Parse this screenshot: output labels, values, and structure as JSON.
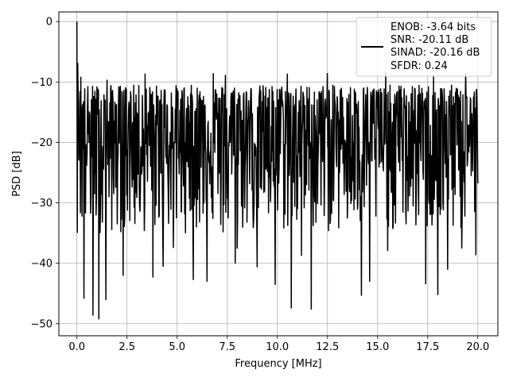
{
  "chart_data": {
    "type": "line",
    "title": "",
    "xlabel": "Frequency [MHz]",
    "ylabel": "PSD [dB]",
    "xlim": [
      -0.9,
      21.0
    ],
    "ylim": [
      -52.0,
      1.6
    ],
    "xticks": [
      0.0,
      2.5,
      5.0,
      7.5,
      10.0,
      12.5,
      15.0,
      17.5,
      20.0
    ],
    "xtick_labels": [
      "0.0",
      "2.5",
      "5.0",
      "7.5",
      "10.0",
      "12.5",
      "15.0",
      "17.5",
      "20.0"
    ],
    "yticks": [
      0,
      -10,
      -20,
      -30,
      -40,
      -50
    ],
    "ytick_labels": [
      "0",
      "−10",
      "−20",
      "−30",
      "−40",
      "−50"
    ],
    "grid": true,
    "legend_position": "top-right",
    "legend_lines": [
      "ENOB: -3.64 bits",
      "SNR: -20.11 dB",
      "SINAD: -20.16 dB",
      "SFDR: 0.24"
    ],
    "series": [
      {
        "color": "#000000",
        "x_range": [
          0.0,
          20.0
        ],
        "points": 1024,
        "noise_floor_db": -20,
        "noise_typical_max_db": -10,
        "noise_typical_min_db": -35,
        "peaks": [
          {
            "x": 0.0,
            "y": 0.0
          },
          {
            "x": 0.03,
            "y": -6.9
          },
          {
            "x": 0.08,
            "y": -13.5
          }
        ],
        "dips": [
          {
            "x": 0.35,
            "y": -45.8
          },
          {
            "x": 0.8,
            "y": -48.6
          },
          {
            "x": 1.1,
            "y": -49.2
          },
          {
            "x": 1.45,
            "y": -46.0
          },
          {
            "x": 2.3,
            "y": -42.0
          },
          {
            "x": 3.4,
            "y": -39.2
          },
          {
            "x": 3.8,
            "y": -42.3
          },
          {
            "x": 4.3,
            "y": -40.5
          },
          {
            "x": 4.8,
            "y": -37.4
          },
          {
            "x": 5.8,
            "y": -42.7
          },
          {
            "x": 6.5,
            "y": -43.0
          },
          {
            "x": 7.3,
            "y": -34.8
          },
          {
            "x": 7.9,
            "y": -40.0
          },
          {
            "x": 8.0,
            "y": -37.5
          },
          {
            "x": 9.0,
            "y": -40.6
          },
          {
            "x": 9.9,
            "y": -43.5
          },
          {
            "x": 11.2,
            "y": -38.7
          },
          {
            "x": 10.7,
            "y": -47.4
          },
          {
            "x": 11.7,
            "y": -47.6
          },
          {
            "x": 14.2,
            "y": -45.3
          },
          {
            "x": 14.6,
            "y": -43.0
          },
          {
            "x": 15.5,
            "y": -37.9
          },
          {
            "x": 17.4,
            "y": -43.4
          },
          {
            "x": 18.0,
            "y": -45.2
          },
          {
            "x": 18.5,
            "y": -41.0
          },
          {
            "x": 19.2,
            "y": -37.5
          },
          {
            "x": 19.9,
            "y": -38.6
          }
        ],
        "spikes": [
          {
            "x": 0.2,
            "y": -9.2
          },
          {
            "x": 1.5,
            "y": -9.7
          },
          {
            "x": 3.4,
            "y": -8.7
          },
          {
            "x": 6.8,
            "y": -8.6
          },
          {
            "x": 7.4,
            "y": -8.9
          },
          {
            "x": 10.5,
            "y": -8.7
          },
          {
            "x": 12.5,
            "y": -8.6
          },
          {
            "x": 15.4,
            "y": -8.5
          },
          {
            "x": 17.8,
            "y": -8.9
          },
          {
            "x": 19.4,
            "y": -8.6
          }
        ]
      }
    ]
  }
}
